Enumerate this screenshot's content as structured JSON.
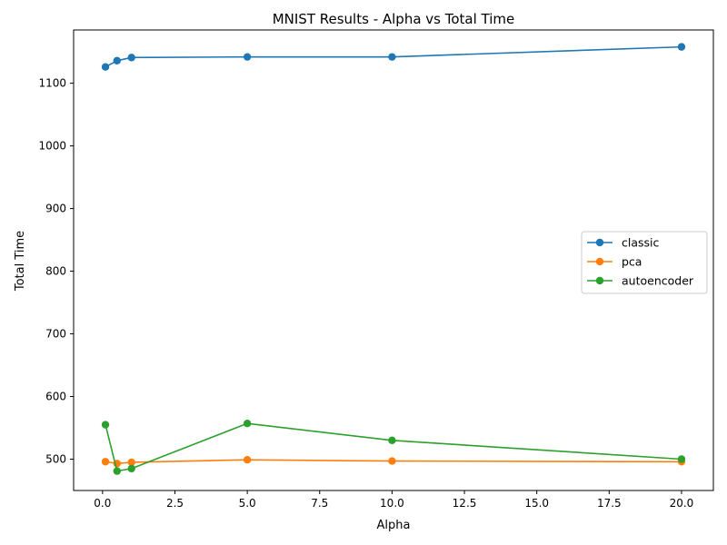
{
  "chart_data": {
    "type": "line",
    "title": "MNIST Results - Alpha vs Total Time",
    "xlabel": "Alpha",
    "ylabel": "Total Time",
    "xlim": [
      -1.0,
      21.1
    ],
    "ylim": [
      450,
      1185
    ],
    "xticks": [
      0.0,
      2.5,
      5.0,
      7.5,
      10.0,
      12.5,
      15.0,
      17.5,
      20.0
    ],
    "xtick_labels": [
      "0.0",
      "2.5",
      "5.0",
      "7.5",
      "10.0",
      "12.5",
      "15.0",
      "17.5",
      "20.0"
    ],
    "yticks": [
      500,
      600,
      700,
      800,
      900,
      1000,
      1100
    ],
    "ytick_labels": [
      "500",
      "600",
      "700",
      "800",
      "900",
      "1000",
      "1100"
    ],
    "x": [
      0.1,
      0.5,
      1.0,
      5.0,
      10.0,
      20.0
    ],
    "grid": false,
    "legend_position": "center-right",
    "series": [
      {
        "name": "classic",
        "color": "#1f77b4",
        "values": [
          1126,
          1136,
          1141,
          1142,
          1142,
          1158
        ]
      },
      {
        "name": "pca",
        "color": "#ff7f0e",
        "values": [
          496,
          493,
          495,
          499,
          497,
          496
        ]
      },
      {
        "name": "autoencoder",
        "color": "#2ca02c",
        "values": [
          555,
          481,
          485,
          557,
          530,
          500
        ]
      }
    ]
  }
}
